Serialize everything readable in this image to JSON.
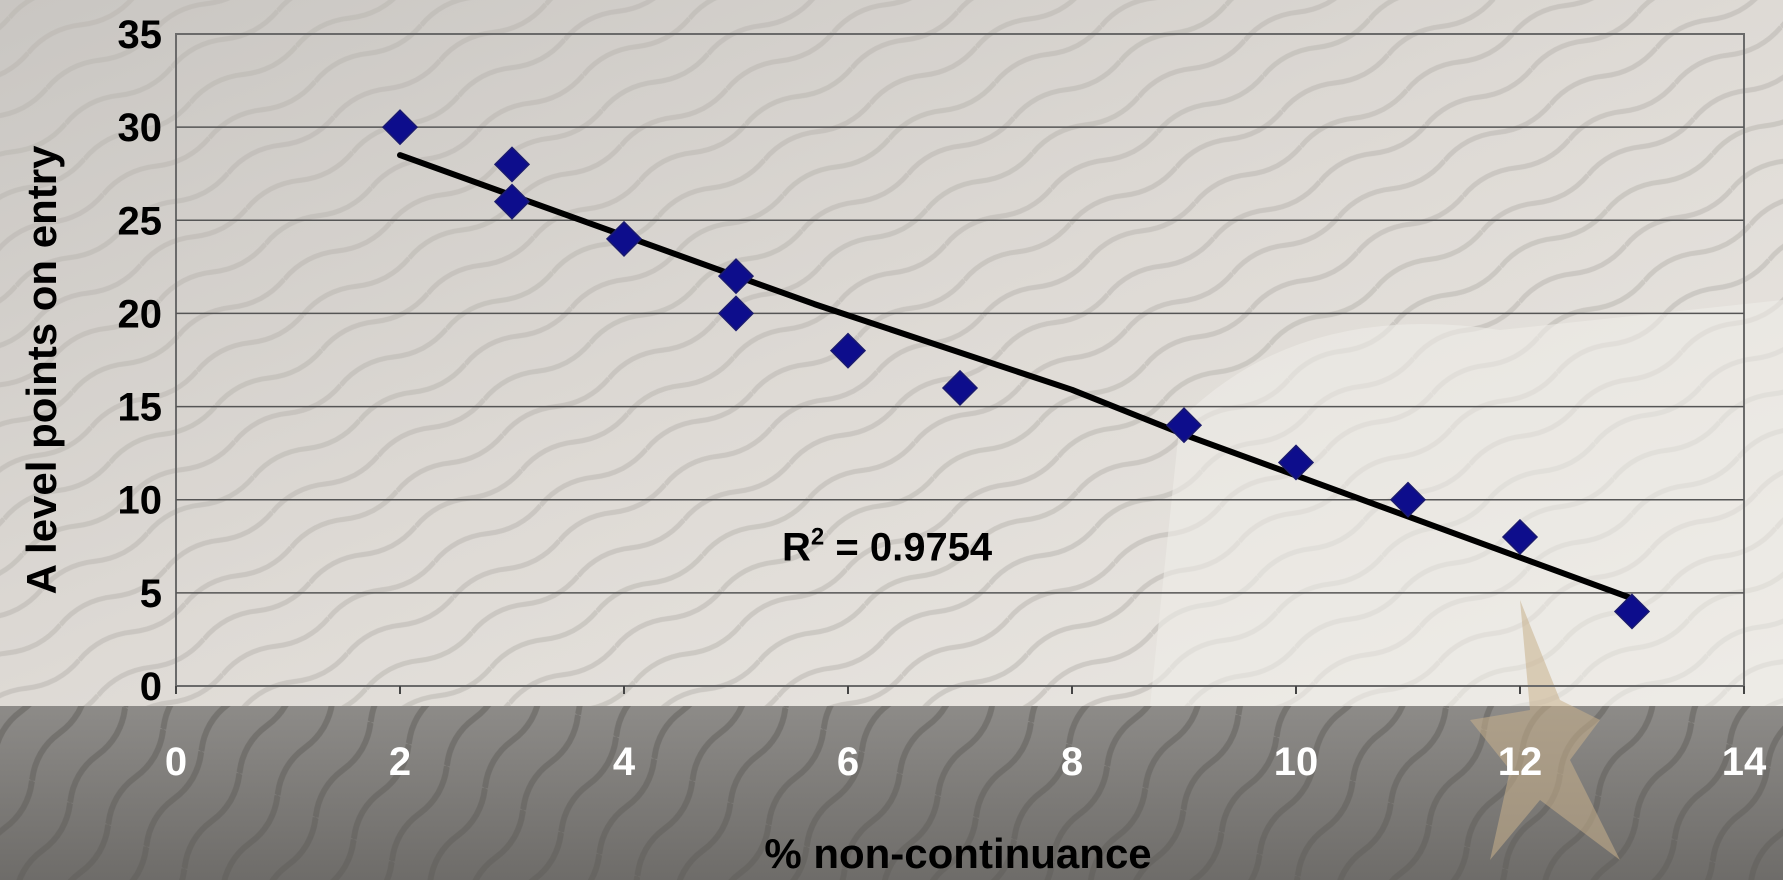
{
  "chart_data": {
    "type": "scatter",
    "xlabel": "% non-continuance",
    "ylabel": "A level points on entry",
    "xlim": [
      0,
      14
    ],
    "ylim": [
      0,
      35
    ],
    "x_ticks": [
      "0",
      "2",
      "4",
      "6",
      "8",
      "10",
      "12",
      "14"
    ],
    "y_ticks": [
      "0",
      "5",
      "10",
      "15",
      "20",
      "25",
      "30",
      "35"
    ],
    "grid": "horizontal",
    "marker": "diamond",
    "colors": {
      "points": "#0d0d8c",
      "trendline": "#000000",
      "grid": "#555555"
    },
    "points": [
      {
        "x": 2,
        "y": 30
      },
      {
        "x": 3,
        "y": 28
      },
      {
        "x": 3,
        "y": 26
      },
      {
        "x": 4,
        "y": 24
      },
      {
        "x": 5,
        "y": 22
      },
      {
        "x": 5,
        "y": 20
      },
      {
        "x": 6,
        "y": 18
      },
      {
        "x": 7,
        "y": 16
      },
      {
        "x": 9,
        "y": 14
      },
      {
        "x": 10,
        "y": 12
      },
      {
        "x": 11,
        "y": 10
      },
      {
        "x": 12,
        "y": 8
      },
      {
        "x": 13,
        "y": 4
      }
    ],
    "trendline": [
      {
        "x": 2,
        "y": 28.5
      },
      {
        "x": 5.7,
        "y": 20.5
      },
      {
        "x": 8,
        "y": 15.9
      },
      {
        "x": 9,
        "y": 13.5
      },
      {
        "x": 13,
        "y": 4.7
      }
    ],
    "annotation": {
      "r2_prefix": "R",
      "r2_sup": "2",
      "r2_value": " = 0.9754",
      "x": 5.5,
      "y": 7.5
    }
  }
}
